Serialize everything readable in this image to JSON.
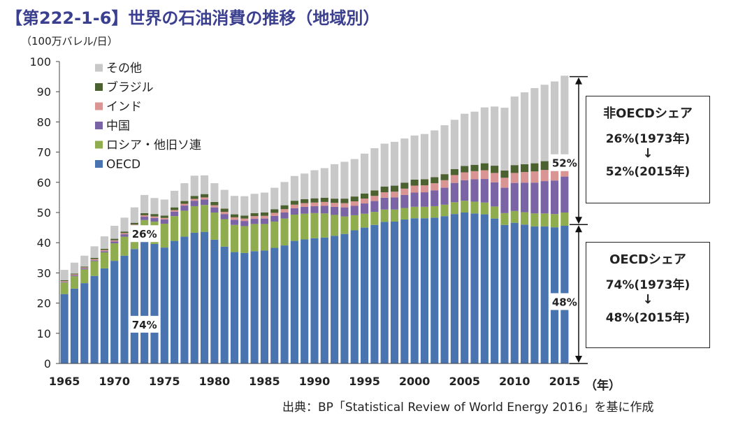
{
  "title": "【第222-1-6】世界の石油消費の推移（地域別）",
  "unit_label": "（100万バレル/日）",
  "x_unit_label": "（年）",
  "source": "出典：BP「Statistical Review of World Energy 2016」を基に作成",
  "boxes": {
    "non_oecd": {
      "title": "非OECDシェア",
      "line1": "26%(1973年)",
      "arrow": "↓",
      "line2": "52%(2015年)"
    },
    "oecd": {
      "title": "OECDシェア",
      "line1": "74%(1973年)",
      "arrow": "↓",
      "line2": "48%(2015年)"
    }
  },
  "colors": {
    "OECD": "#4a74b0",
    "ロシア・他旧ソ連": "#8fad4f",
    "中国": "#7a64a6",
    "インド": "#d99594",
    "ブラジル": "#4c6130",
    "その他": "#c8c8c8"
  },
  "chart_data": {
    "type": "bar",
    "stacked": true,
    "x": [
      1965,
      1966,
      1967,
      1968,
      1969,
      1970,
      1971,
      1972,
      1973,
      1974,
      1975,
      1976,
      1977,
      1978,
      1979,
      1980,
      1981,
      1982,
      1983,
      1984,
      1985,
      1986,
      1987,
      1988,
      1989,
      1990,
      1991,
      1992,
      1993,
      1994,
      1995,
      1996,
      1997,
      1998,
      1999,
      2000,
      2001,
      2002,
      2003,
      2004,
      2005,
      2006,
      2007,
      2008,
      2009,
      2010,
      2011,
      2012,
      2013,
      2014,
      2015
    ],
    "x_tick_labels": [
      "1965",
      "1970",
      "1975",
      "1980",
      "1985",
      "1990",
      "1995",
      "2000",
      "2005",
      "2010",
      "2015"
    ],
    "ylim": [
      0,
      100
    ],
    "y_ticks": [
      0,
      10,
      20,
      30,
      40,
      50,
      60,
      70,
      80,
      90,
      100
    ],
    "legend_placement": "top-left",
    "series": [
      {
        "name": "OECD",
        "values": [
          23.0,
          24.8,
          26.6,
          29.0,
          31.5,
          34.0,
          35.7,
          37.9,
          40.5,
          39.6,
          38.4,
          40.6,
          42.0,
          43.3,
          43.6,
          41.0,
          38.7,
          36.9,
          36.6,
          37.2,
          37.4,
          38.3,
          39.1,
          40.6,
          41.1,
          41.5,
          41.7,
          42.3,
          42.9,
          44.1,
          45.0,
          45.9,
          46.9,
          47.0,
          47.7,
          48.1,
          48.1,
          48.3,
          48.8,
          49.5,
          50.0,
          49.7,
          49.4,
          48.0,
          45.9,
          46.6,
          46.0,
          45.4,
          45.4,
          45.1,
          45.6
        ]
      },
      {
        "name": "ロシア・他旧ソ連",
        "values": [
          3.8,
          4.1,
          4.6,
          4.9,
          5.3,
          5.8,
          6.3,
          6.7,
          7.0,
          7.4,
          7.9,
          8.2,
          8.6,
          8.8,
          8.9,
          9.0,
          9.1,
          9.0,
          8.9,
          9.0,
          8.8,
          8.7,
          8.9,
          8.7,
          8.5,
          8.3,
          8.0,
          6.9,
          5.8,
          5.0,
          4.6,
          4.3,
          4.1,
          4.0,
          3.8,
          3.8,
          3.8,
          3.8,
          3.8,
          3.9,
          3.9,
          3.9,
          3.9,
          4.0,
          3.9,
          3.9,
          4.1,
          4.3,
          4.3,
          4.4,
          4.4
        ]
      },
      {
        "name": "中国",
        "values": [
          0.2,
          0.3,
          0.3,
          0.3,
          0.4,
          0.6,
          0.8,
          0.9,
          1.1,
          1.2,
          1.4,
          1.5,
          1.7,
          1.8,
          1.8,
          1.7,
          1.7,
          1.7,
          1.7,
          1.7,
          1.8,
          1.9,
          2.0,
          2.1,
          2.3,
          2.3,
          2.5,
          2.7,
          3.0,
          3.1,
          3.4,
          3.6,
          3.9,
          4.0,
          4.3,
          4.7,
          4.8,
          5.2,
          5.6,
          6.4,
          6.8,
          7.4,
          7.8,
          8.0,
          8.4,
          9.3,
          9.8,
          10.2,
          10.7,
          11.1,
          11.9
        ]
      },
      {
        "name": "インド",
        "values": [
          0.3,
          0.3,
          0.3,
          0.4,
          0.4,
          0.4,
          0.4,
          0.5,
          0.5,
          0.5,
          0.5,
          0.5,
          0.6,
          0.6,
          0.7,
          0.7,
          0.7,
          0.8,
          0.8,
          0.9,
          0.9,
          1.0,
          1.1,
          1.2,
          1.2,
          1.2,
          1.3,
          1.3,
          1.4,
          1.5,
          1.6,
          1.7,
          1.8,
          1.9,
          2.1,
          2.3,
          2.3,
          2.4,
          2.5,
          2.6,
          2.6,
          2.7,
          2.9,
          3.1,
          3.3,
          3.3,
          3.5,
          3.7,
          3.7,
          3.8,
          4.2
        ]
      },
      {
        "name": "ブラジル",
        "values": [
          0.3,
          0.3,
          0.3,
          0.4,
          0.4,
          0.5,
          0.5,
          0.6,
          0.7,
          0.8,
          0.8,
          0.9,
          0.9,
          1.0,
          1.1,
          1.1,
          1.1,
          1.0,
          1.0,
          1.0,
          1.1,
          1.2,
          1.3,
          1.3,
          1.3,
          1.4,
          1.4,
          1.4,
          1.5,
          1.6,
          1.7,
          1.8,
          1.9,
          2.0,
          2.0,
          2.0,
          2.0,
          2.0,
          2.0,
          2.0,
          2.1,
          2.1,
          2.3,
          2.4,
          2.4,
          2.6,
          2.6,
          2.7,
          2.9,
          3.0,
          3.1
        ]
      },
      {
        "name": "その他",
        "values": [
          3.4,
          3.6,
          3.6,
          3.8,
          4.1,
          4.3,
          4.6,
          5.1,
          6.0,
          5.3,
          5.3,
          5.5,
          5.9,
          6.7,
          6.2,
          6.2,
          6.2,
          6.1,
          6.4,
          6.4,
          6.6,
          7.1,
          7.7,
          8.2,
          8.5,
          9.3,
          9.8,
          11.4,
          12.2,
          12.4,
          13.2,
          14.0,
          14.2,
          14.5,
          14.6,
          14.6,
          15.0,
          15.5,
          16.2,
          16.3,
          17.3,
          17.6,
          18.5,
          19.6,
          20.8,
          22.7,
          23.8,
          24.9,
          25.3,
          26.0,
          26.1
        ]
      }
    ],
    "annotations": [
      {
        "text": "26%",
        "year": 1973,
        "y": 43
      },
      {
        "text": "74%",
        "year": 1973,
        "y": 13
      },
      {
        "text": "52%",
        "year": 2015,
        "y": 66.5
      },
      {
        "text": "48%",
        "year": 2015,
        "y": 20.5
      }
    ],
    "brackets": [
      {
        "from": 46,
        "to": 95
      },
      {
        "from": 0,
        "to": 46
      }
    ]
  }
}
